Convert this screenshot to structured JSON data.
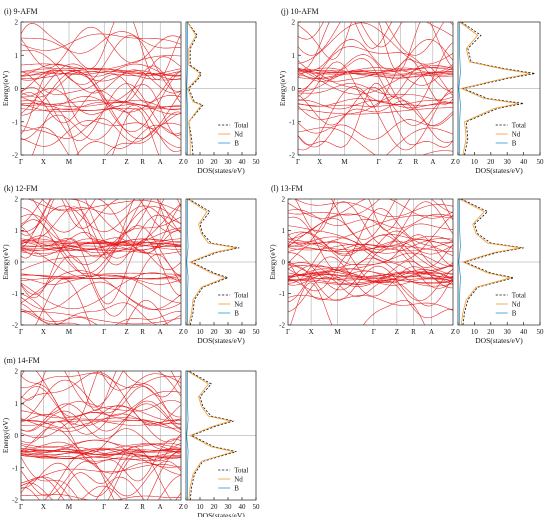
{
  "chart_data": [
    {
      "type": "line",
      "title": "(i) 9-AFM",
      "band": {
        "ylabel": "Energy(eV)",
        "ylim": [
          -2,
          2
        ],
        "yticks": [
          -2,
          -1,
          0,
          1,
          2
        ],
        "kpoints": [
          "Γ",
          "X",
          "M",
          "Γ",
          "Z",
          "R",
          "A",
          "Z"
        ]
      },
      "dos": {
        "xlabel": "DOS(states/eV)",
        "xlim": [
          0,
          50
        ],
        "xticks": [
          0,
          10,
          20,
          30,
          40,
          50
        ]
      },
      "legend": {
        "position": "bottom-right",
        "entries": [
          "Total",
          "Nd",
          "B"
        ]
      },
      "series": [
        {
          "name": "Total",
          "x": [
            -2,
            -1.5,
            -1.0,
            -0.6,
            -0.5,
            -0.4,
            0,
            0.3,
            0.45,
            0.55,
            0.7,
            1.2,
            1.6,
            2
          ],
          "values": [
            5,
            4,
            2,
            10,
            12,
            6,
            2,
            9,
            11,
            8,
            3,
            3,
            8,
            1
          ]
        },
        {
          "name": "Nd",
          "x": [
            -2,
            -1.5,
            -1.0,
            -0.6,
            -0.5,
            -0.4,
            0,
            0.3,
            0.45,
            0.55,
            0.7,
            1.2,
            1.6,
            2
          ],
          "values": [
            3,
            3,
            2,
            9,
            11,
            5,
            1,
            8,
            10,
            7,
            2,
            2,
            7,
            1
          ]
        },
        {
          "name": "B",
          "x": [
            -2,
            -1.5,
            -1.0,
            -0.5,
            0,
            0.5,
            1.0,
            1.5,
            2
          ],
          "values": [
            1,
            1,
            1,
            1,
            0.5,
            1,
            1,
            1,
            1
          ]
        }
      ]
    },
    {
      "type": "line",
      "title": "(j) 10-AFM",
      "band": {
        "ylabel": "Energy(eV)",
        "ylim": [
          -2,
          2
        ],
        "yticks": [
          -2,
          -1,
          0,
          1,
          2
        ],
        "kpoints": [
          "Γ",
          "X",
          "M",
          "Γ",
          "Z",
          "R",
          "A",
          "Z"
        ]
      },
      "dos": {
        "xlabel": "DOS(states/eV)",
        "xlim": [
          0,
          50
        ],
        "xticks": [
          0,
          10,
          20,
          30,
          40,
          50
        ]
      },
      "legend": {
        "position": "bottom-right",
        "entries": [
          "Total",
          "Nd",
          "B"
        ]
      },
      "series": [
        {
          "name": "Total",
          "x": [
            -2,
            -1.5,
            -1.0,
            -0.6,
            -0.45,
            -0.3,
            0,
            0.3,
            0.45,
            0.6,
            0.8,
            1.2,
            1.6,
            2
          ],
          "values": [
            4,
            6,
            5,
            24,
            40,
            18,
            3,
            30,
            47,
            28,
            8,
            6,
            14,
            2
          ]
        },
        {
          "name": "Nd",
          "x": [
            -2,
            -1.5,
            -1.0,
            -0.6,
            -0.45,
            -0.3,
            0,
            0.3,
            0.45,
            0.6,
            0.8,
            1.2,
            1.6,
            2
          ],
          "values": [
            3,
            5,
            4,
            22,
            37,
            16,
            2,
            28,
            44,
            26,
            7,
            5,
            12,
            1
          ]
        },
        {
          "name": "B",
          "x": [
            -2,
            -1.5,
            -1.0,
            -0.5,
            0,
            0.5,
            1.0,
            1.5,
            2
          ],
          "values": [
            1,
            1,
            1,
            1.5,
            0.5,
            1.5,
            1,
            1,
            1
          ]
        }
      ]
    },
    {
      "type": "line",
      "title": "(k) 12-FM",
      "band": {
        "ylabel": "Energy(eV)",
        "ylim": [
          -2,
          2
        ],
        "yticks": [
          -2,
          -1,
          0,
          1,
          2
        ],
        "kpoints": [
          "Γ",
          "X",
          "M",
          "Γ",
          "Z",
          "R",
          "A",
          "Z"
        ]
      },
      "dos": {
        "xlabel": "DOS(states/eV)",
        "xlim": [
          0,
          50
        ],
        "xticks": [
          0,
          10,
          20,
          30,
          40,
          50
        ]
      },
      "legend": {
        "position": "bottom-right",
        "entries": [
          "Total",
          "Nd",
          "B"
        ]
      },
      "series": [
        {
          "name": "Total",
          "x": [
            -2,
            -1.6,
            -1.2,
            -0.8,
            -0.5,
            -0.35,
            0,
            0.3,
            0.45,
            0.6,
            0.9,
            1.2,
            1.6,
            2
          ],
          "values": [
            3,
            5,
            6,
            12,
            30,
            20,
            4,
            22,
            38,
            18,
            12,
            10,
            17,
            2
          ]
        },
        {
          "name": "Nd",
          "x": [
            -2,
            -1.6,
            -1.2,
            -0.8,
            -0.5,
            -0.35,
            0,
            0.3,
            0.45,
            0.6,
            0.9,
            1.2,
            1.6,
            2
          ],
          "values": [
            2,
            4,
            5,
            11,
            28,
            18,
            3,
            20,
            36,
            16,
            11,
            9,
            15,
            1
          ]
        },
        {
          "name": "B",
          "x": [
            -2,
            -1.5,
            -1.0,
            -0.5,
            0,
            0.5,
            1.0,
            1.5,
            2
          ],
          "values": [
            1,
            1,
            1,
            1.5,
            0.5,
            1.5,
            1,
            1,
            1
          ]
        }
      ]
    },
    {
      "type": "line",
      "title": "(l) 13-FM",
      "band": {
        "ylabel": "Energy(eV)",
        "ylim": [
          -2,
          2
        ],
        "yticks": [
          -2,
          -1,
          0,
          1,
          2
        ],
        "kpoints": [
          "Γ",
          "X",
          "M",
          "Γ",
          "Z",
          "R",
          "A",
          "Z"
        ]
      },
      "dos": {
        "xlabel": "DOS(states/eV)",
        "xlim": [
          0,
          50
        ],
        "xticks": [
          0,
          10,
          20,
          30,
          40,
          50
        ]
      },
      "legend": {
        "position": "bottom-right",
        "entries": [
          "Total",
          "Nd",
          "B"
        ]
      },
      "series": [
        {
          "name": "Total",
          "x": [
            -2,
            -1.6,
            -1.2,
            -0.8,
            -0.5,
            -0.35,
            0,
            0.3,
            0.45,
            0.6,
            0.9,
            1.2,
            1.6,
            2
          ],
          "values": [
            3,
            4,
            6,
            12,
            34,
            20,
            4,
            24,
            40,
            20,
            12,
            10,
            18,
            2
          ]
        },
        {
          "name": "Nd",
          "x": [
            -2,
            -1.6,
            -1.2,
            -0.8,
            -0.5,
            -0.35,
            0,
            0.3,
            0.45,
            0.6,
            0.9,
            1.2,
            1.6,
            2
          ],
          "values": [
            2,
            3,
            5,
            11,
            32,
            18,
            3,
            22,
            38,
            18,
            11,
            9,
            16,
            1
          ]
        },
        {
          "name": "B",
          "x": [
            -2,
            -1.5,
            -1.0,
            -0.5,
            0,
            0.5,
            1.0,
            1.5,
            2
          ],
          "values": [
            1,
            1,
            1,
            1.5,
            0.5,
            1.5,
            1,
            1,
            1
          ]
        }
      ]
    },
    {
      "type": "line",
      "title": "(m) 14-FM",
      "band": {
        "ylabel": "Energy(eV)",
        "ylim": [
          -2,
          2
        ],
        "yticks": [
          -2,
          -1,
          0,
          1,
          2
        ],
        "kpoints": [
          "Γ",
          "X",
          "M",
          "Γ",
          "Z",
          "R",
          "A",
          "Z"
        ]
      },
      "dos": {
        "xlabel": "DOS(states/eV)",
        "xlim": [
          0,
          50
        ],
        "xticks": [
          0,
          10,
          20,
          30,
          40,
          50
        ]
      },
      "legend": {
        "position": "bottom-right",
        "entries": [
          "Total",
          "Nd",
          "B"
        ]
      },
      "series": [
        {
          "name": "Total",
          "x": [
            -2,
            -1.6,
            -1.2,
            -0.8,
            -0.5,
            -0.35,
            0,
            0.3,
            0.45,
            0.6,
            0.9,
            1.2,
            1.6,
            2
          ],
          "values": [
            3,
            4,
            6,
            12,
            36,
            20,
            4,
            22,
            34,
            18,
            12,
            10,
            18,
            2
          ]
        },
        {
          "name": "Nd",
          "x": [
            -2,
            -1.6,
            -1.2,
            -0.8,
            -0.5,
            -0.35,
            0,
            0.3,
            0.45,
            0.6,
            0.9,
            1.2,
            1.6,
            2
          ],
          "values": [
            2,
            3,
            5,
            11,
            34,
            18,
            3,
            20,
            32,
            16,
            11,
            9,
            16,
            1
          ]
        },
        {
          "name": "B",
          "x": [
            -2,
            -1.5,
            -1.0,
            -0.5,
            0,
            0.5,
            1.0,
            1.5,
            2
          ],
          "values": [
            1,
            1,
            1,
            1.5,
            0.5,
            1.5,
            1,
            1,
            1
          ]
        }
      ]
    }
  ]
}
